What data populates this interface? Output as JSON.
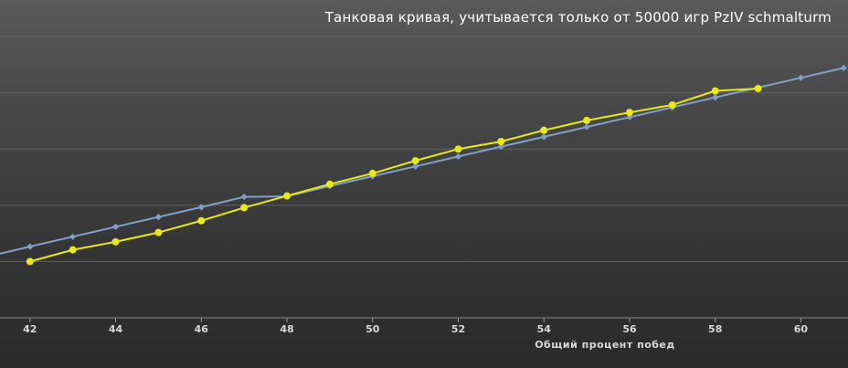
{
  "chart_data": {
    "type": "line",
    "title": "Танковая кривая, учитывается только от 50000 игр PzIV schmalturm",
    "xlabel": "Общий процент побед",
    "ylabel": "",
    "xlim": [
      41.3,
      61.1
    ],
    "ylim": [
      0,
      60
    ],
    "x_ticks": [
      42,
      44,
      46,
      48,
      50,
      52,
      54,
      56,
      58,
      60
    ],
    "grid": true,
    "legend": "none",
    "series": [
      {
        "color": "#e8e81a",
        "marker": "circle",
        "x": [
          42,
          43,
          44,
          45,
          46,
          47,
          48,
          49,
          50,
          51,
          52,
          53,
          54,
          55,
          56,
          57,
          58,
          59
        ],
        "y": [
          12.0,
          14.5,
          16.2,
          18.2,
          20.7,
          23.5,
          26.0,
          28.5,
          30.8,
          33.5,
          36.0,
          37.6,
          40.0,
          42.1,
          43.8,
          45.4,
          48.4,
          48.9
        ]
      },
      {
        "color": "#7fa0c8",
        "marker": "diamond",
        "x": [
          41,
          42,
          43,
          44,
          45,
          46,
          47,
          48,
          49,
          50,
          51,
          52,
          53,
          54,
          55,
          56,
          57,
          58,
          59,
          60,
          61
        ],
        "y": [
          13.0,
          15.2,
          17.3,
          19.4,
          21.5,
          23.6,
          25.8,
          25.9,
          28.1,
          30.2,
          32.3,
          34.4,
          36.5,
          38.6,
          40.7,
          42.8,
          44.9,
          47.0,
          49.1,
          51.2,
          53.3
        ]
      }
    ]
  }
}
